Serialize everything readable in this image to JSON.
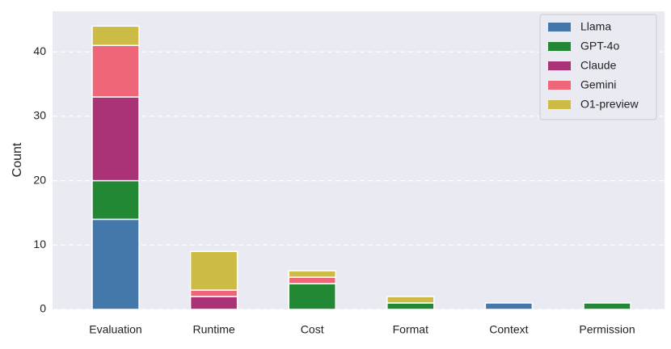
{
  "chart_data": {
    "type": "stacked_bar",
    "y_label": "Count",
    "categories": [
      "Evaluation",
      "Runtime",
      "Cost",
      "Format",
      "Context",
      "Permission"
    ],
    "series": [
      {
        "name": "Llama",
        "color": "#4477aa",
        "values": [
          14,
          0,
          0,
          0,
          1,
          0
        ]
      },
      {
        "name": "GPT-4o",
        "color": "#228833",
        "values": [
          6,
          0,
          4,
          1,
          0,
          1
        ]
      },
      {
        "name": "Claude",
        "color": "#aa3377",
        "values": [
          13,
          2,
          0,
          0,
          0,
          0
        ]
      },
      {
        "name": "Gemini",
        "color": "#ee6677",
        "values": [
          8,
          1,
          1,
          0,
          0,
          0
        ]
      },
      {
        "name": "O1-preview",
        "color": "#ccbb44",
        "values": [
          3,
          6,
          1,
          1,
          0,
          0
        ]
      }
    ],
    "ylim": [
      0,
      46.3
    ],
    "yticks": [
      0,
      10,
      20,
      30,
      40
    ],
    "grid": true,
    "legend": "upper right"
  }
}
